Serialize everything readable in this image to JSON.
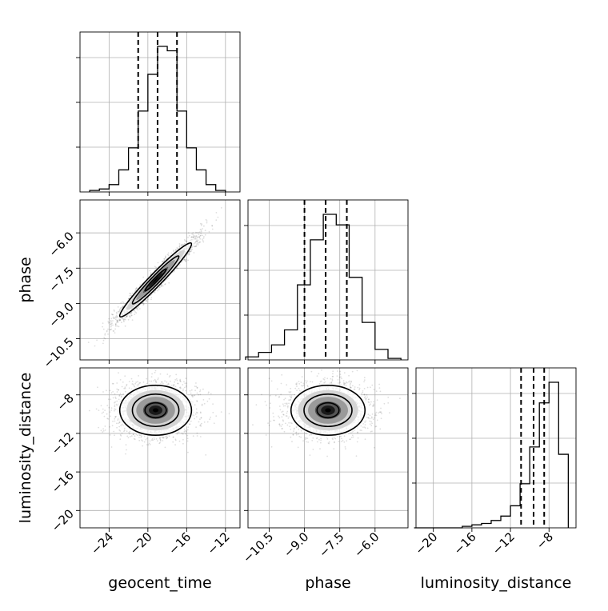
{
  "chart_data": {
    "type": "corner",
    "parameters": [
      "geocent_time",
      "phase",
      "luminosity_distance"
    ],
    "axis_labels": {
      "x_bottom": [
        "geocent_time",
        "phase",
        "luminosity_distance"
      ],
      "y_left": [
        "phase",
        "luminosity_distance"
      ]
    },
    "ranges": {
      "geocent_time": [
        -27.0,
        -10.5
      ],
      "phase": [
        -11.4,
        -4.6
      ],
      "luminosity_distance": [
        -21.8,
        -5.2
      ]
    },
    "ticks": {
      "geocent_time": {
        "values": [
          -24,
          -20,
          -16,
          -12
        ],
        "labels": [
          "−24",
          "−20",
          "−16",
          "−12"
        ]
      },
      "phase": {
        "values": [
          -10.5,
          -9.0,
          -7.5,
          -6.0
        ],
        "labels": [
          "−10.5",
          "−9.0",
          "−7.5",
          "−6.0"
        ]
      },
      "luminosity_distance": {
        "values": [
          -20,
          -16,
          -12,
          -8
        ],
        "labels": [
          "−20",
          "−16",
          "−12",
          "−8"
        ]
      }
    },
    "quantiles": {
      "geocent_time": [
        -21.0,
        -19.0,
        -17.0
      ],
      "phase": [
        -9.0,
        -8.1,
        -7.2
      ],
      "luminosity_distance": [
        -10.9,
        -9.6,
        -8.5
      ]
    },
    "histograms": {
      "geocent_time": {
        "edges": [
          -26.0,
          -25.0,
          -24.0,
          -23.0,
          -22.0,
          -21.0,
          -20.0,
          -19.0,
          -18.0,
          -17.0,
          -16.0,
          -15.0,
          -14.0,
          -13.0,
          -12.0
        ],
        "counts": [
          0.01,
          0.02,
          0.05,
          0.15,
          0.3,
          0.55,
          0.8,
          0.99,
          0.96,
          0.55,
          0.3,
          0.15,
          0.05,
          0.01
        ]
      },
      "phase": {
        "edges": [
          -11.5,
          -10.95,
          -10.4,
          -9.85,
          -9.3,
          -8.75,
          -8.2,
          -7.65,
          -7.1,
          -6.55,
          -6.0,
          -5.45,
          -4.9
        ],
        "counts": [
          0.02,
          0.05,
          0.1,
          0.2,
          0.5,
          0.8,
          0.97,
          0.9,
          0.55,
          0.25,
          0.07,
          0.01
        ]
      },
      "luminosity_distance": {
        "edges": [
          -22.0,
          -21.0,
          -20.0,
          -19.0,
          -18.0,
          -17.0,
          -16.0,
          -15.0,
          -14.0,
          -13.0,
          -12.0,
          -11.0,
          -10.0,
          -9.0,
          -8.0,
          -7.0,
          -6.0
        ],
        "counts": [
          0,
          0,
          0,
          0,
          0,
          0.01,
          0.02,
          0.03,
          0.05,
          0.08,
          0.15,
          0.3,
          0.55,
          0.85,
          0.99,
          0.5
        ]
      }
    },
    "joint": [
      {
        "x": "geocent_time",
        "y": "phase",
        "center": [
          -19.2,
          -8.0
        ],
        "sd": [
          2.0,
          0.85
        ],
        "corr": 0.97,
        "contours": [
          1,
          2,
          3
        ]
      },
      {
        "x": "geocent_time",
        "y": "luminosity_distance",
        "center": [
          -19.2,
          -9.6
        ],
        "sd": [
          2.0,
          1.4
        ],
        "corr": 0.0,
        "contours": [
          1,
          2,
          3
        ]
      },
      {
        "x": "phase",
        "y": "luminosity_distance",
        "center": [
          -8.0,
          -9.6
        ],
        "sd": [
          0.85,
          1.4
        ],
        "corr": 0.0,
        "contours": [
          1,
          2,
          3
        ]
      }
    ],
    "grid": true,
    "legend": "none"
  }
}
